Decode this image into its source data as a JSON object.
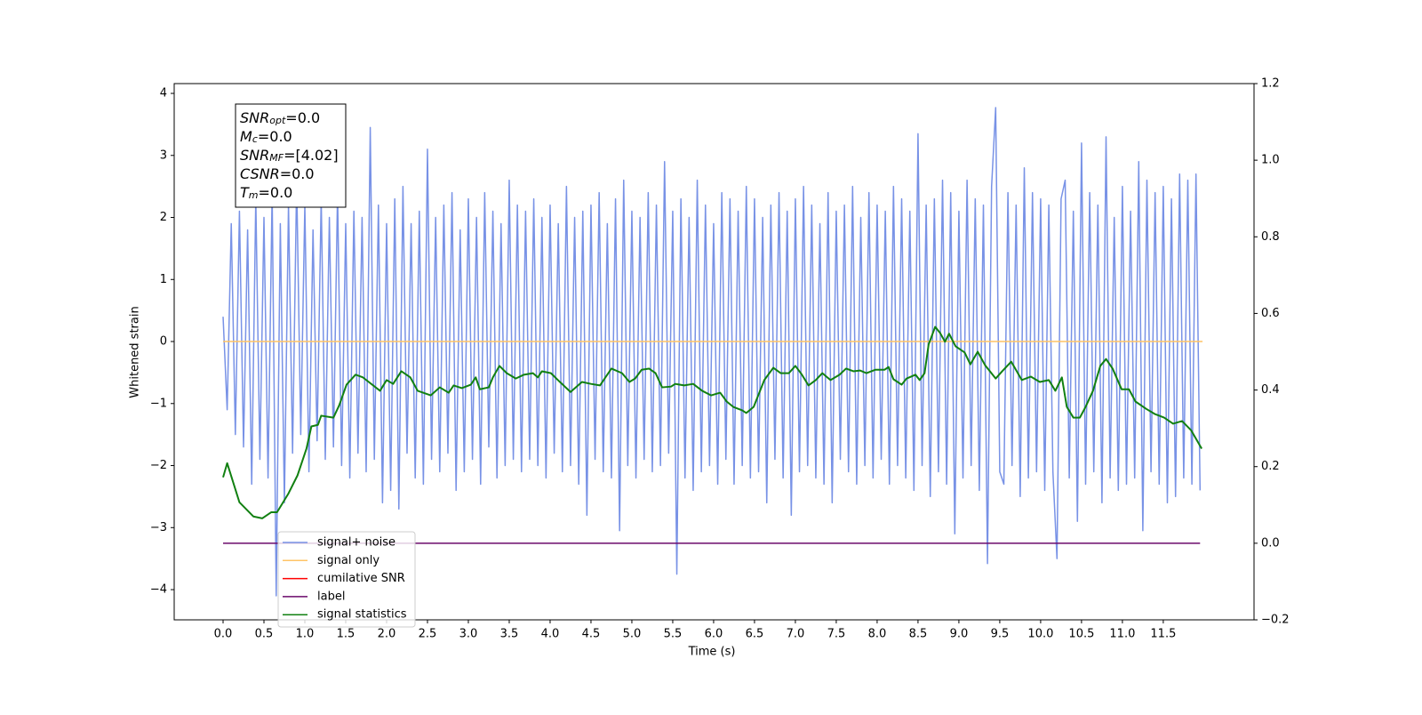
{
  "chart_data": {
    "type": "line",
    "xlabel": "Time (s)",
    "ylabel": "Whitened strain",
    "xlim": [
      -0.598,
      12.61
    ],
    "ylim": [
      -4.487,
      4.158
    ],
    "y2lim": [
      -0.2,
      1.2
    ],
    "xticks": [
      {
        "value": 0,
        "label": "0.0"
      },
      {
        "value": 0.5,
        "label": "0.5"
      },
      {
        "value": 1,
        "label": "1.0"
      },
      {
        "value": 1.5,
        "label": "1.5"
      },
      {
        "value": 2,
        "label": "2.0"
      },
      {
        "value": 2.5,
        "label": "2.5"
      },
      {
        "value": 3,
        "label": "3.0"
      },
      {
        "value": 3.5,
        "label": "3.5"
      },
      {
        "value": 4,
        "label": "4.0"
      },
      {
        "value": 4.5,
        "label": "4.5"
      },
      {
        "value": 5,
        "label": "5.0"
      },
      {
        "value": 5.5,
        "label": "5.5"
      },
      {
        "value": 6,
        "label": "6.0"
      },
      {
        "value": 6.5,
        "label": "6.5"
      },
      {
        "value": 7,
        "label": "7.0"
      },
      {
        "value": 7.5,
        "label": "7.5"
      },
      {
        "value": 8,
        "label": "8.0"
      },
      {
        "value": 8.5,
        "label": "8.5"
      },
      {
        "value": 9,
        "label": "9.0"
      },
      {
        "value": 9.5,
        "label": "9.5"
      },
      {
        "value": 10,
        "label": "10.0"
      },
      {
        "value": 10.5,
        "label": "10.5"
      },
      {
        "value": 11,
        "label": "11.0"
      },
      {
        "value": 11.5,
        "label": "11.5"
      }
    ],
    "yticks": [
      {
        "value": -4,
        "label": "−4"
      },
      {
        "value": -3,
        "label": "−3"
      },
      {
        "value": -2,
        "label": "−2"
      },
      {
        "value": -1,
        "label": "−1"
      },
      0,
      1,
      2,
      3,
      4
    ],
    "y2ticks": [
      {
        "value": -0.2,
        "label": "−0.2"
      },
      {
        "value": 0,
        "label": "0.0"
      },
      {
        "value": 0.2,
        "label": "0.2"
      },
      {
        "value": 0.4,
        "label": "0.4"
      },
      {
        "value": 0.6,
        "label": "0.6"
      },
      {
        "value": 0.8,
        "label": "0.8"
      },
      {
        "value": 1,
        "label": "1.0"
      },
      {
        "value": 1.2,
        "label": "1.2"
      }
    ],
    "grid": false,
    "legend": "lower left",
    "annotation": [
      {
        "base": "SNR",
        "sub": "opt",
        "text": "=0.0"
      },
      {
        "base": "M",
        "sub": "c",
        "text": "=0.0"
      },
      {
        "base": "SNR",
        "sub": "MF",
        "text": "=[4.02]"
      },
      {
        "base": "CSNR",
        "text": "=0.0"
      },
      {
        "base": "T",
        "sub": "m",
        "text": "=0.0"
      }
    ],
    "series": [
      {
        "name": "signal+ noise",
        "color": "#7892e6",
        "axis": "y",
        "x": [
          0,
          0.05,
          0.1,
          0.15,
          0.2,
          0.25,
          0.3,
          0.35,
          0.4,
          0.45,
          0.5,
          0.55,
          0.6,
          0.65,
          0.7,
          0.75,
          0.8,
          0.85,
          0.9,
          0.95,
          1,
          1.05,
          1.1,
          1.15,
          1.2,
          1.25,
          1.3,
          1.35,
          1.4,
          1.45,
          1.5,
          1.55,
          1.6,
          1.65,
          1.7,
          1.75,
          1.8,
          1.85,
          1.9,
          1.95,
          2,
          2.05,
          2.1,
          2.15,
          2.2,
          2.25,
          2.3,
          2.35,
          2.4,
          2.45,
          2.5,
          2.55,
          2.6,
          2.65,
          2.7,
          2.75,
          2.8,
          2.85,
          2.9,
          2.95,
          3,
          3.05,
          3.1,
          3.15,
          3.2,
          3.25,
          3.3,
          3.35,
          3.4,
          3.45,
          3.5,
          3.55,
          3.6,
          3.65,
          3.7,
          3.75,
          3.8,
          3.85,
          3.9,
          3.95,
          4,
          4.05,
          4.1,
          4.15,
          4.2,
          4.25,
          4.3,
          4.35,
          4.4,
          4.45,
          4.5,
          4.55,
          4.6,
          4.65,
          4.7,
          4.75,
          4.8,
          4.85,
          4.9,
          4.95,
          5,
          5.05,
          5.1,
          5.15,
          5.2,
          5.25,
          5.3,
          5.35,
          5.4,
          5.45,
          5.5,
          5.55,
          5.6,
          5.65,
          5.7,
          5.75,
          5.8,
          5.85,
          5.9,
          5.95,
          6,
          6.05,
          6.1,
          6.15,
          6.2,
          6.25,
          6.3,
          6.35,
          6.4,
          6.45,
          6.5,
          6.55,
          6.6,
          6.65,
          6.7,
          6.75,
          6.8,
          6.85,
          6.9,
          6.95,
          7,
          7.05,
          7.1,
          7.15,
          7.2,
          7.25,
          7.3,
          7.35,
          7.4,
          7.45,
          7.5,
          7.55,
          7.6,
          7.65,
          7.7,
          7.75,
          7.8,
          7.85,
          7.9,
          7.95,
          8,
          8.05,
          8.1,
          8.15,
          8.2,
          8.25,
          8.3,
          8.35,
          8.4,
          8.45,
          8.5,
          8.55,
          8.6,
          8.65,
          8.7,
          8.75,
          8.8,
          8.85,
          8.9,
          8.95,
          9,
          9.05,
          9.1,
          9.15,
          9.2,
          9.25,
          9.3,
          9.35,
          9.4,
          9.45,
          9.5,
          9.55,
          9.6,
          9.65,
          9.7,
          9.75,
          9.8,
          9.85,
          9.9,
          9.95,
          10,
          10.05,
          10.1,
          10.15,
          10.2,
          10.25,
          10.3,
          10.35,
          10.4,
          10.45,
          10.5,
          10.55,
          10.6,
          10.65,
          10.7,
          10.75,
          10.8,
          10.85,
          10.9,
          10.95,
          11,
          11.05,
          11.1,
          11.15,
          11.2,
          11.25,
          11.3,
          11.35,
          11.4,
          11.45,
          11.5,
          11.55,
          11.6,
          11.65,
          11.7,
          11.75,
          11.8,
          11.85,
          11.9,
          11.95
        ],
        "values": [
          0.4,
          -1.1,
          1.9,
          -1.5,
          2.1,
          -1.7,
          1.8,
          -2.3,
          2.3,
          -1.9,
          2.0,
          -2.2,
          2.4,
          -4.1,
          1.9,
          -2.6,
          2.2,
          -1.8,
          2.6,
          -1.5,
          2.2,
          -2.1,
          1.8,
          -1.6,
          2.3,
          -1.9,
          2.0,
          -1.7,
          2.4,
          -2.0,
          1.9,
          -2.2,
          2.1,
          -1.8,
          2.0,
          -2.1,
          3.45,
          -1.9,
          2.2,
          -2.6,
          1.9,
          -2.4,
          2.3,
          -2.7,
          2.5,
          -1.8,
          1.9,
          -2.2,
          2.1,
          -2.3,
          3.1,
          -1.9,
          2.0,
          -2.1,
          2.2,
          -1.8,
          2.4,
          -2.4,
          1.8,
          -2.1,
          2.3,
          -1.9,
          2.0,
          -2.3,
          2.4,
          -1.7,
          2.1,
          -2.2,
          1.9,
          -2.0,
          2.6,
          -1.9,
          2.2,
          -2.1,
          2.1,
          -1.9,
          2.3,
          -2.0,
          2.0,
          -2.2,
          2.2,
          -1.8,
          1.9,
          -2.1,
          2.5,
          -2.0,
          2.0,
          -2.3,
          2.1,
          -2.8,
          2.2,
          -1.9,
          2.4,
          -2.1,
          1.9,
          -2.2,
          2.3,
          -3.05,
          2.6,
          -2.0,
          2.1,
          -2.2,
          2.0,
          -1.9,
          2.4,
          -2.1,
          2.2,
          -2.0,
          2.9,
          -1.8,
          2.1,
          -3.75,
          2.3,
          -2.2,
          2.0,
          -2.4,
          2.6,
          -2.1,
          2.2,
          -2.0,
          1.9,
          -2.3,
          2.4,
          -1.9,
          2.3,
          -2.3,
          2.1,
          -2.0,
          2.5,
          -2.2,
          2.3,
          -2.1,
          2.0,
          -2.6,
          2.2,
          -1.9,
          2.4,
          -2.2,
          2.1,
          -2.8,
          2.3,
          -2.1,
          2.5,
          -2.0,
          2.2,
          -2.2,
          1.9,
          -2.3,
          2.4,
          -2.6,
          2.1,
          -1.9,
          2.2,
          -2.1,
          2.5,
          -2.3,
          2.0,
          -2.0,
          2.4,
          -2.2,
          2.2,
          -1.9,
          2.1,
          -2.3,
          2.5,
          -2.0,
          2.3,
          -2.2,
          2.1,
          -2.4,
          3.35,
          -2.0,
          2.2,
          -2.5,
          2.3,
          -2.1,
          2.6,
          -2.3,
          2.4,
          -3.1,
          2.1,
          -2.2,
          2.6,
          -2.0,
          2.3,
          -2.4,
          2.2,
          -3.58,
          2.5,
          3.77,
          -2.1,
          -2.3,
          2.4,
          -2.0,
          2.2,
          -2.5,
          2.8,
          -2.2,
          2.4,
          -2.1,
          2.3,
          -2.4,
          2.2,
          -2.1,
          -3.5,
          2.3,
          2.6,
          -2.2,
          2.1,
          -2.9,
          3.2,
          -2.3,
          2.4,
          -2.1,
          2.2,
          -2.6,
          3.3,
          -2.2,
          2.0,
          -2.4,
          2.5,
          -2.3,
          2.1,
          -2.2,
          2.9,
          -3.05,
          2.6,
          -2.1,
          2.4,
          -2.3,
          2.5,
          -2.6,
          2.3,
          -2.5,
          2.7,
          -2.2,
          2.6,
          -2.3,
          2.7,
          -2.4
        ]
      },
      {
        "name": "signal only",
        "color": "#ffc466",
        "axis": "y",
        "x": [
          0,
          11.98
        ],
        "values": [
          0,
          0
        ]
      },
      {
        "name": "cumilative SNR",
        "color": "#ff0000",
        "axis": "y",
        "x": [],
        "values": []
      },
      {
        "name": "label",
        "color": "#6b0a6b",
        "axis": "y2",
        "x": [
          0,
          11.95
        ],
        "values": [
          0,
          0
        ]
      },
      {
        "name": "signal statistics",
        "color": "#118011",
        "axis": "y2",
        "x": [
          0,
          0.05,
          0.2,
          0.37,
          0.48,
          0.59,
          0.66,
          0.8,
          0.91,
          1.02,
          1.08,
          1.16,
          1.2,
          1.35,
          1.42,
          1.51,
          1.62,
          1.71,
          1.92,
          2.0,
          2.08,
          2.18,
          2.29,
          2.38,
          2.54,
          2.65,
          2.76,
          2.82,
          2.92,
          3.03,
          3.09,
          3.14,
          3.25,
          3.3,
          3.38,
          3.47,
          3.58,
          3.68,
          3.79,
          3.85,
          3.9,
          4.01,
          4.12,
          4.25,
          4.39,
          4.5,
          4.61,
          4.75,
          4.88,
          4.97,
          5.04,
          5.12,
          5.21,
          5.29,
          5.37,
          5.48,
          5.53,
          5.64,
          5.75,
          5.86,
          5.97,
          6.08,
          6.16,
          6.24,
          6.35,
          6.4,
          6.49,
          6.62,
          6.73,
          6.82,
          6.92,
          7.0,
          7.08,
          7.16,
          7.25,
          7.33,
          7.43,
          7.54,
          7.62,
          7.71,
          7.79,
          7.87,
          7.98,
          8.09,
          8.14,
          8.2,
          8.3,
          8.36,
          8.47,
          8.52,
          8.58,
          8.63,
          8.71,
          8.77,
          8.83,
          8.88,
          8.96,
          9.07,
          9.14,
          9.23,
          9.32,
          9.45,
          9.53,
          9.64,
          9.77,
          9.88,
          9.99,
          10.1,
          10.18,
          10.26,
          10.32,
          10.4,
          10.48,
          10.55,
          10.64,
          10.73,
          10.8,
          10.88,
          10.99,
          11.08,
          11.16,
          11.29,
          11.4,
          11.51,
          11.62,
          11.73,
          11.84,
          11.97
        ],
        "values": [
          0.172,
          0.209,
          0.107,
          0.07,
          0.065,
          0.081,
          0.081,
          0.13,
          0.177,
          0.247,
          0.305,
          0.309,
          0.333,
          0.328,
          0.36,
          0.414,
          0.44,
          0.433,
          0.398,
          0.426,
          0.416,
          0.449,
          0.433,
          0.398,
          0.386,
          0.407,
          0.393,
          0.412,
          0.405,
          0.414,
          0.433,
          0.402,
          0.407,
          0.433,
          0.463,
          0.444,
          0.43,
          0.44,
          0.444,
          0.433,
          0.449,
          0.444,
          0.421,
          0.395,
          0.421,
          0.416,
          0.412,
          0.456,
          0.444,
          0.421,
          0.43,
          0.453,
          0.456,
          0.444,
          0.407,
          0.409,
          0.416,
          0.412,
          0.416,
          0.398,
          0.386,
          0.393,
          0.37,
          0.356,
          0.347,
          0.34,
          0.356,
          0.426,
          0.458,
          0.444,
          0.444,
          0.463,
          0.44,
          0.412,
          0.426,
          0.444,
          0.426,
          0.44,
          0.456,
          0.449,
          0.451,
          0.444,
          0.453,
          0.453,
          0.46,
          0.428,
          0.414,
          0.43,
          0.44,
          0.426,
          0.444,
          0.519,
          0.565,
          0.549,
          0.526,
          0.547,
          0.514,
          0.498,
          0.467,
          0.5,
          0.465,
          0.43,
          0.449,
          0.474,
          0.426,
          0.435,
          0.421,
          0.426,
          0.398,
          0.433,
          0.356,
          0.328,
          0.328,
          0.356,
          0.398,
          0.463,
          0.481,
          0.456,
          0.402,
          0.402,
          0.37,
          0.351,
          0.337,
          0.328,
          0.312,
          0.319,
          0.295,
          0.247
        ]
      }
    ]
  }
}
